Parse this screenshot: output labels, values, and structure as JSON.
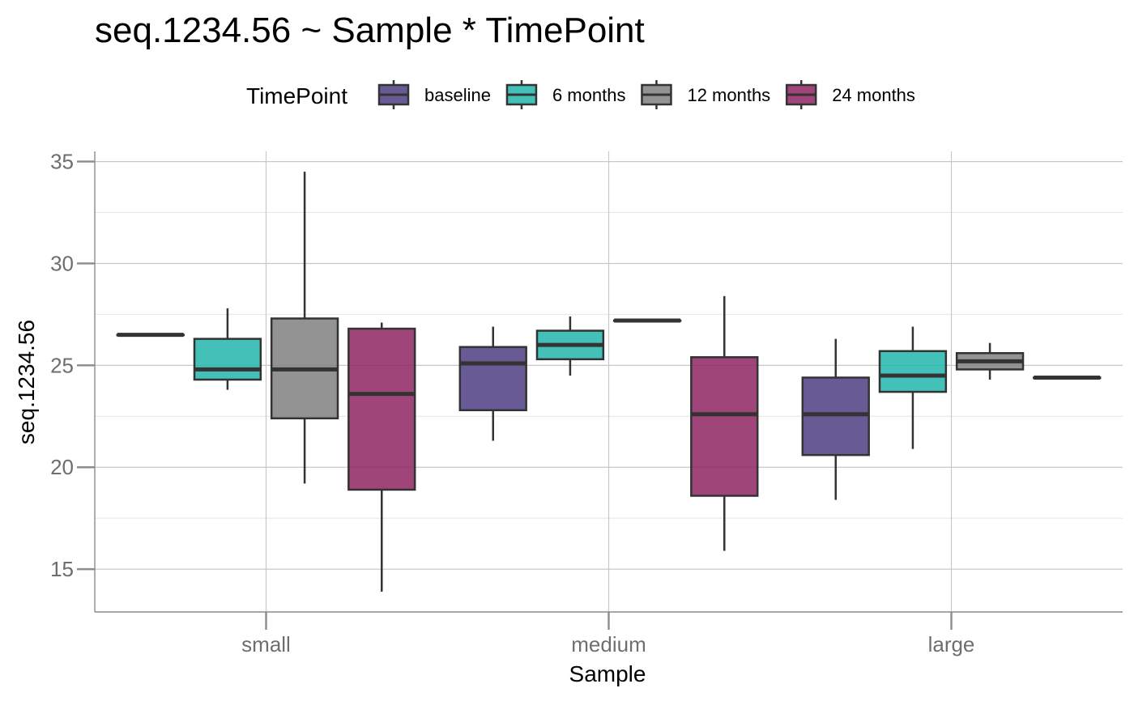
{
  "chart_data": {
    "type": "boxplot",
    "title": "seq.1234.56 ~ Sample * TimePoint",
    "xlabel": "Sample",
    "ylabel": "seq.1234.56",
    "legend": {
      "title": "TimePoint",
      "position": "top"
    },
    "categories": [
      "small",
      "medium",
      "large"
    ],
    "ylim": [
      12.9,
      35.5
    ],
    "yticks": [
      15,
      20,
      25,
      30,
      35
    ],
    "grid": true,
    "series": [
      {
        "name": "baseline",
        "color": "#4e3e82",
        "boxes": [
          {
            "category": "small",
            "min": 26.5,
            "q1": 26.5,
            "median": 26.5,
            "q3": 26.5,
            "max": 26.5
          },
          {
            "category": "medium",
            "min": 21.3,
            "q1": 22.8,
            "median": 25.1,
            "q3": 25.9,
            "max": 26.9
          },
          {
            "category": "large",
            "min": 18.4,
            "q1": 20.6,
            "median": 22.6,
            "q3": 24.4,
            "max": 26.3
          }
        ]
      },
      {
        "name": "6 months",
        "color": "#22b5aa",
        "boxes": [
          {
            "category": "small",
            "min": 23.8,
            "q1": 24.3,
            "median": 24.8,
            "q3": 26.3,
            "max": 27.8
          },
          {
            "category": "medium",
            "min": 24.5,
            "q1": 25.3,
            "median": 26.0,
            "q3": 26.7,
            "max": 27.4
          },
          {
            "category": "large",
            "min": 20.9,
            "q1": 23.7,
            "median": 24.5,
            "q3": 25.7,
            "max": 26.9
          }
        ]
      },
      {
        "name": "12 months",
        "color": "#7f807f",
        "boxes": [
          {
            "category": "small",
            "min": 19.2,
            "q1": 22.4,
            "median": 24.8,
            "q3": 27.3,
            "max": 34.5
          },
          {
            "category": "medium",
            "min": 27.2,
            "q1": 27.2,
            "median": 27.2,
            "q3": 27.2,
            "max": 27.2
          },
          {
            "category": "large",
            "min": 24.3,
            "q1": 24.8,
            "median": 25.2,
            "q3": 25.6,
            "max": 26.1
          }
        ]
      },
      {
        "name": "24 months",
        "color": "#8e2462",
        "boxes": [
          {
            "category": "small",
            "min": 13.9,
            "q1": 18.9,
            "median": 23.6,
            "q3": 26.8,
            "max": 27.1
          },
          {
            "category": "medium",
            "min": 15.9,
            "q1": 18.6,
            "median": 22.6,
            "q3": 25.4,
            "max": 28.4
          },
          {
            "category": "large",
            "min": 24.4,
            "q1": 24.4,
            "median": 24.4,
            "q3": 24.4,
            "max": 24.4
          }
        ]
      }
    ]
  }
}
